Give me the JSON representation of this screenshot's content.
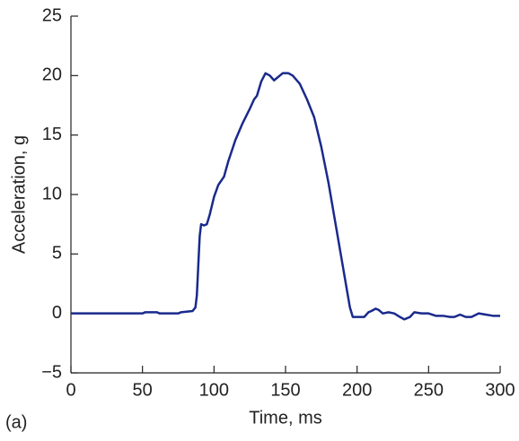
{
  "chart_data": {
    "type": "line",
    "xlabel": "Time, ms",
    "ylabel": "Acceleration, g",
    "annotation": "(a)",
    "x": [
      0,
      50,
      52,
      60,
      62,
      75,
      77,
      85,
      87,
      88,
      89,
      90,
      91,
      93,
      95,
      97,
      100,
      103,
      107,
      110,
      115,
      120,
      125,
      128,
      130,
      133,
      136,
      139,
      142,
      145,
      148,
      152,
      155,
      160,
      165,
      170,
      175,
      180,
      185,
      190,
      195,
      197,
      205,
      208,
      210,
      213,
      215,
      218,
      222,
      226,
      230,
      233,
      237,
      240,
      245,
      250,
      255,
      260,
      265,
      268,
      272,
      276,
      280,
      285,
      290,
      295,
      300
    ],
    "series": [
      {
        "color": "#1a2a8c",
        "values": [
          0,
          0,
          0.1,
          0.1,
          0,
          0,
          0.1,
          0.2,
          0.5,
          1.5,
          4,
          6.5,
          7.5,
          7.4,
          7.5,
          8.3,
          9.8,
          10.8,
          11.5,
          12.8,
          14.6,
          16,
          17.2,
          18,
          18.3,
          19.5,
          20.2,
          20,
          19.6,
          19.9,
          20.2,
          20.2,
          20,
          19.3,
          18,
          16.5,
          14,
          11,
          7.5,
          4,
          0.5,
          -0.3,
          -0.3,
          0.1,
          0.2,
          0.4,
          0.3,
          0,
          0.1,
          0,
          -0.3,
          -0.5,
          -0.3,
          0.1,
          0,
          0,
          -0.2,
          -0.2,
          -0.3,
          -0.3,
          -0.1,
          -0.3,
          -0.3,
          0,
          -0.1,
          -0.2,
          -0.2
        ]
      }
    ],
    "xlim": [
      0,
      300
    ],
    "ylim": [
      -5,
      25
    ],
    "xticks": [
      0,
      50,
      100,
      150,
      200,
      250,
      300
    ],
    "yticks": [
      {
        "value": -5,
        "label": "−5"
      },
      0,
      5,
      10,
      15,
      20,
      25
    ]
  }
}
